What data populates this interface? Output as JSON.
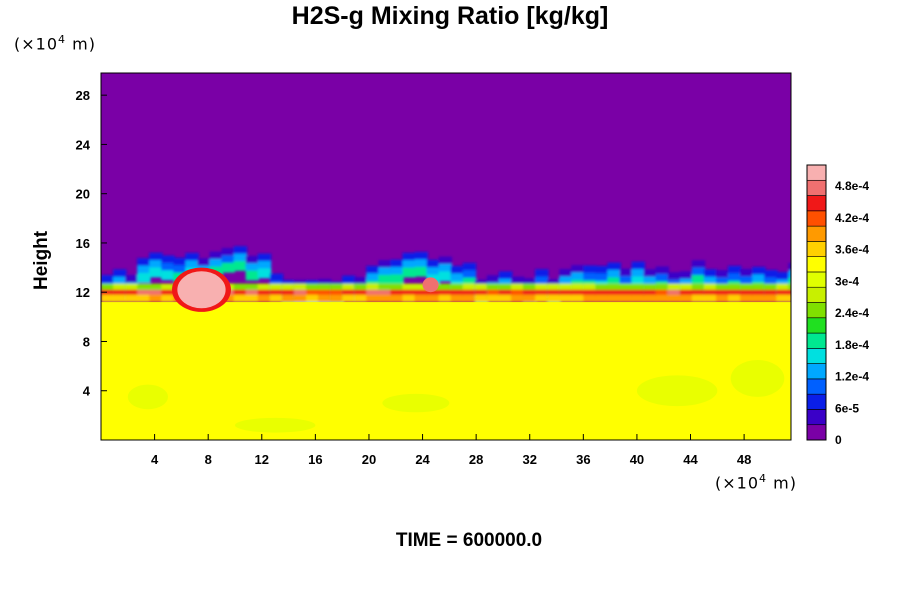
{
  "chart_data": {
    "type": "heatmap",
    "title": "H2S-g Mixing Ratio [kg/kg]",
    "ylabel": "Height",
    "x_unit_prefix": "(×10",
    "x_unit_exp": "4",
    "x_unit_suffix": " m)",
    "y_unit_prefix": "(×10",
    "y_unit_exp": "4",
    "y_unit_suffix": " m)",
    "x_ticks": [
      4,
      8,
      12,
      16,
      20,
      24,
      28,
      32,
      36,
      40,
      44,
      48
    ],
    "y_ticks": [
      4,
      8,
      12,
      16,
      20,
      24,
      28
    ],
    "xlim": [
      0,
      51.5
    ],
    "ylim": [
      0,
      29.8
    ],
    "colorbar": {
      "tick_labels": [
        "0",
        "6e-5",
        "1.2e-4",
        "1.8e-4",
        "2.4e-4",
        "3e-4",
        "3.6e-4",
        "4.2e-4",
        "4.8e-4"
      ],
      "tick_values": [
        0,
        6e-05,
        0.00012,
        0.00018,
        0.00024,
        0.0003,
        0.00036,
        0.00042,
        0.00048
      ],
      "range": [
        0,
        0.00052
      ],
      "colors": [
        "#7a00a6",
        "#3a00c8",
        "#0a1ee8",
        "#0060ff",
        "#00a8ff",
        "#00e0e0",
        "#00e890",
        "#20e020",
        "#80e000",
        "#c8f000",
        "#e0ff00",
        "#ffff00",
        "#ffd000",
        "#ff9a00",
        "#ff5000",
        "#f01818",
        "#f07070",
        "#f8b0b0"
      ]
    },
    "regions": {
      "upper_value": 0,
      "lower_value": 0.00033,
      "interface_height": 11.5,
      "plume_peak": {
        "x": 7.5,
        "y": 12.2,
        "value": 0.0005
      }
    }
  },
  "footer": {
    "time_label": "TIME = 600000.0"
  }
}
